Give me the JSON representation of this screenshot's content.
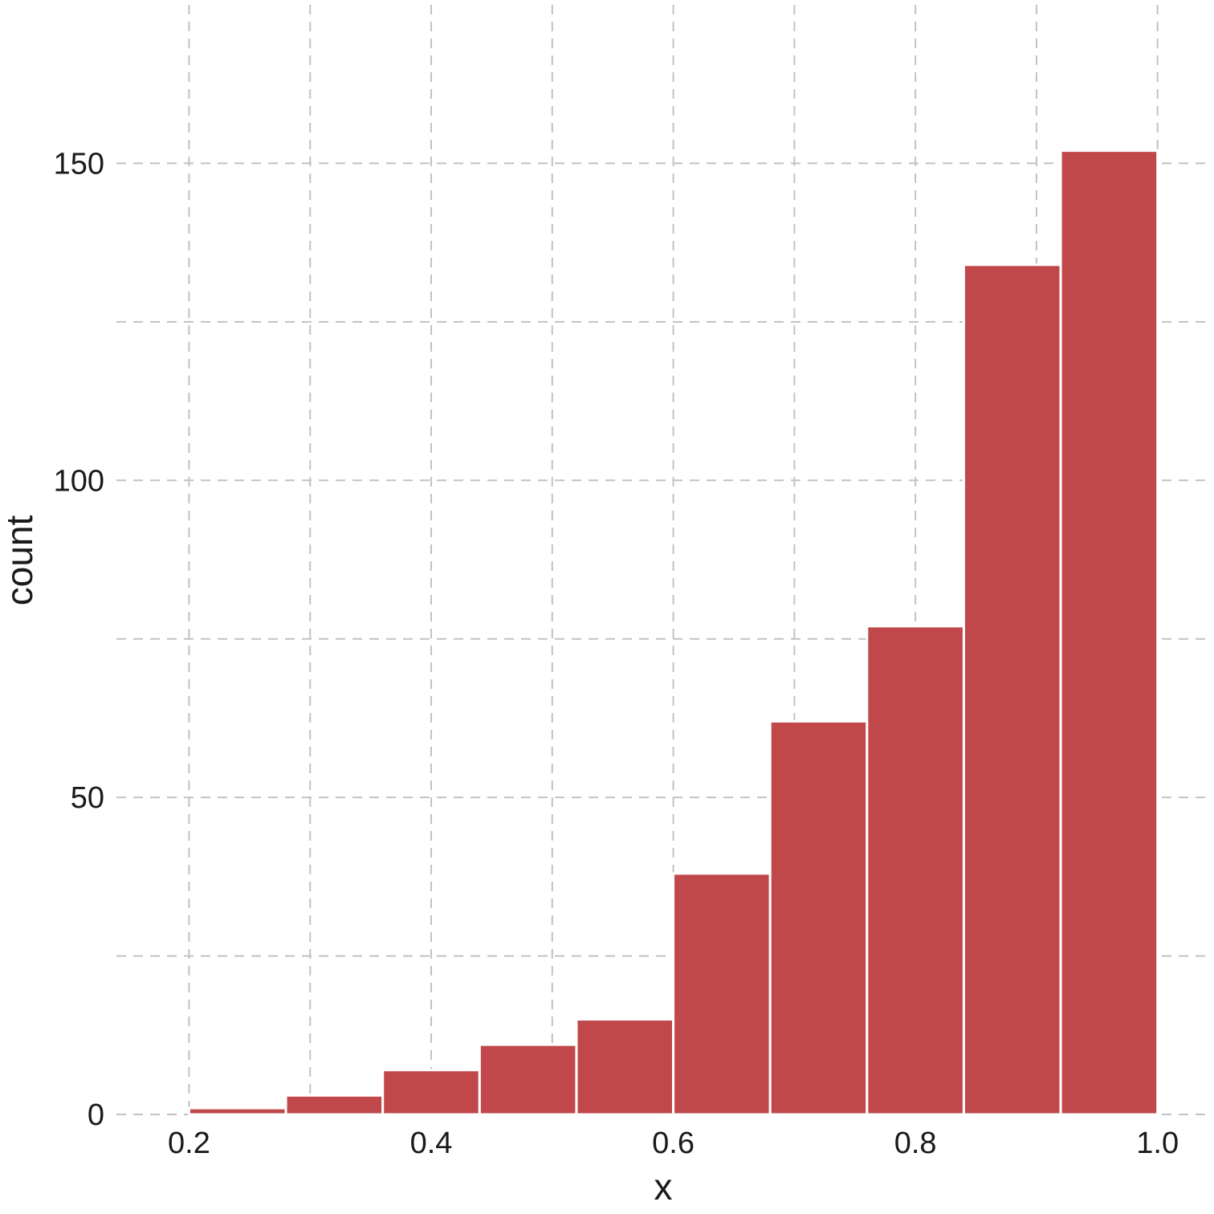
{
  "chart_data": {
    "type": "bar",
    "title": "",
    "xlabel": "x",
    "ylabel": "count",
    "bins": [
      {
        "x0": 0.2,
        "x1": 0.28,
        "count": 1
      },
      {
        "x0": 0.28,
        "x1": 0.36,
        "count": 3
      },
      {
        "x0": 0.36,
        "x1": 0.44,
        "count": 7
      },
      {
        "x0": 0.44,
        "x1": 0.52,
        "count": 11
      },
      {
        "x0": 0.52,
        "x1": 0.6,
        "count": 15
      },
      {
        "x0": 0.6,
        "x1": 0.68,
        "count": 38
      },
      {
        "x0": 0.68,
        "x1": 0.76,
        "count": 62
      },
      {
        "x0": 0.76,
        "x1": 0.84,
        "count": 77
      },
      {
        "x0": 0.84,
        "x1": 0.92,
        "count": 134
      },
      {
        "x0": 0.92,
        "x1": 1.0,
        "count": 152
      }
    ],
    "xlim": [
      0.14,
      1.04
    ],
    "ylim": [
      0,
      175
    ],
    "x_ticks": [
      {
        "value": 0.2,
        "label": "0.2"
      },
      {
        "value": 0.4,
        "label": "0.4"
      },
      {
        "value": 0.6,
        "label": "0.6"
      },
      {
        "value": 0.8,
        "label": "0.8"
      },
      {
        "value": 1.0,
        "label": "1.0"
      }
    ],
    "x_minor_ticks": [
      0.3,
      0.5,
      0.7,
      0.9
    ],
    "y_ticks": [
      {
        "value": 0,
        "label": "0"
      },
      {
        "value": 50,
        "label": "50"
      },
      {
        "value": 100,
        "label": "100"
      },
      {
        "value": 150,
        "label": "150"
      }
    ],
    "y_minor_ticks": [
      25,
      75,
      125
    ],
    "grid": true,
    "grid_style": "dashed",
    "bar_color": "#c0474a"
  }
}
